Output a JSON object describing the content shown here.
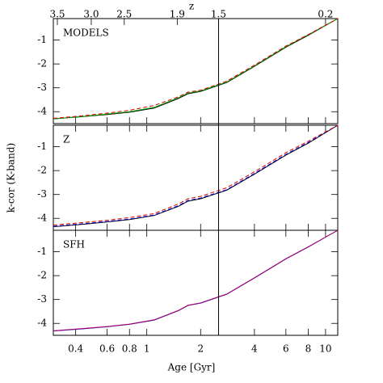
{
  "chart_data": {
    "type": "line",
    "xlabel": "Age [Gyr]",
    "ylabel": "k-cor (K-band)",
    "x2label": "z",
    "log_x": true,
    "xlim": [
      0.3,
      11.7
    ],
    "xticks": [
      0.4,
      0.6,
      0.8,
      1,
      2,
      4,
      6,
      8,
      10
    ],
    "x2ticks": [
      {
        "value": 0.316,
        "label": "3.5"
      },
      {
        "value": 0.489,
        "label": "3.0"
      },
      {
        "value": 0.748,
        "label": "2.5"
      },
      {
        "value": 1.48,
        "label": "1.9"
      },
      {
        "value": 2.52,
        "label": "1.5"
      },
      {
        "value": 10,
        "label": "0.2"
      }
    ],
    "vline": 2.52,
    "ylim": [
      -4.5,
      -0.1
    ],
    "yticks": [
      -4,
      -3,
      -2,
      -1
    ],
    "x": [
      0.3,
      0.45,
      0.6,
      0.8,
      1.1,
      1.5,
      1.7,
      2.0,
      2.8,
      4,
      6,
      8,
      11.7
    ],
    "panels": [
      {
        "label": "MODELS",
        "series": [
          {
            "color": "#000000",
            "style": "solid",
            "values": [
              -4.3,
              -4.2,
              -4.12,
              -4.02,
              -3.85,
              -3.45,
              -3.25,
              -3.15,
              -2.78,
              -2.1,
              -1.3,
              -0.8,
              -0.1
            ]
          },
          {
            "color": "#00a000",
            "style": "solid",
            "values": [
              -4.3,
              -4.19,
              -4.1,
              -4.0,
              -3.82,
              -3.42,
              -3.22,
              -3.13,
              -2.76,
              -2.08,
              -1.28,
              -0.78,
              -0.1
            ]
          },
          {
            "color": "#e00000",
            "style": "dashed",
            "values": [
              -4.28,
              -4.16,
              -4.06,
              -3.94,
              -3.74,
              -3.38,
              -3.18,
              -3.1,
              -2.72,
              -2.05,
              -1.25,
              -0.77,
              -0.1
            ]
          }
        ]
      },
      {
        "label": "Z",
        "series": [
          {
            "color": "#000000",
            "style": "solid",
            "values": [
              -4.35,
              -4.24,
              -4.15,
              -4.05,
              -3.88,
              -3.5,
              -3.28,
              -3.18,
              -2.82,
              -2.15,
              -1.35,
              -0.85,
              -0.1
            ]
          },
          {
            "color": "#0000e0",
            "style": "dashed",
            "values": [
              -4.33,
              -4.22,
              -4.13,
              -4.03,
              -3.86,
              -3.47,
              -3.25,
              -3.15,
              -2.8,
              -2.12,
              -1.32,
              -0.82,
              -0.1
            ]
          },
          {
            "color": "#e00000",
            "style": "dashed",
            "values": [
              -4.28,
              -4.17,
              -4.08,
              -3.97,
              -3.8,
              -3.4,
              -3.18,
              -3.08,
              -2.72,
              -2.05,
              -1.25,
              -0.77,
              -0.1
            ]
          }
        ]
      },
      {
        "label": "SFH",
        "series": [
          {
            "color": "#0000e0",
            "style": "solid",
            "values": [
              -4.32,
              -4.22,
              -4.14,
              -4.04,
              -3.86,
              -3.47,
              -3.25,
              -3.15,
              -2.78,
              -2.1,
              -1.3,
              -0.8,
              -0.1
            ]
          },
          {
            "color": "#b00060",
            "style": "solid",
            "values": [
              -4.31,
              -4.21,
              -4.13,
              -4.03,
              -3.85,
              -3.46,
              -3.24,
              -3.14,
              -2.77,
              -2.09,
              -1.29,
              -0.79,
              -0.1
            ]
          }
        ]
      }
    ]
  }
}
